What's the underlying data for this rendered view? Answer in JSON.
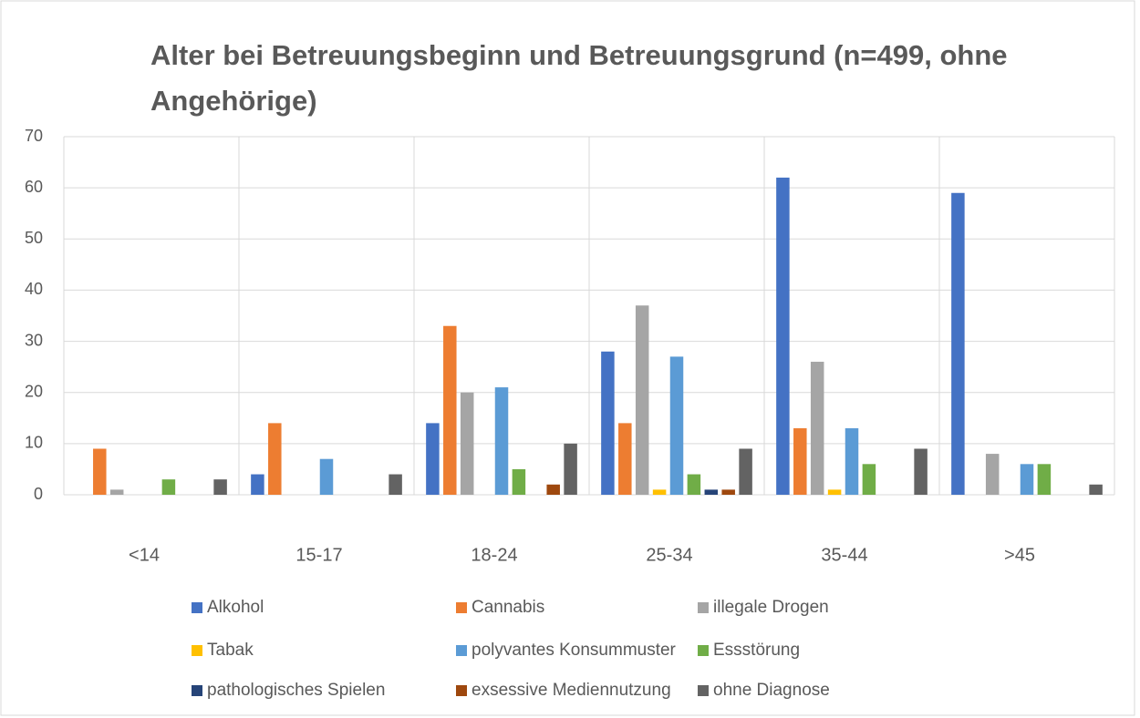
{
  "chart_data": {
    "type": "bar",
    "title": "Alter bei Betreuungsbeginn und Betreuungsgrund (n=499, ohne Angehörige)",
    "categories": [
      "<14",
      "15-17",
      "18-24",
      "25-34",
      "35-44",
      ">45"
    ],
    "series": [
      {
        "name": "Alkohol",
        "color": "#4472c4",
        "values": [
          0,
          4,
          14,
          28,
          62,
          59
        ]
      },
      {
        "name": "Cannabis",
        "color": "#ed7d31",
        "values": [
          9,
          14,
          33,
          14,
          13,
          0
        ]
      },
      {
        "name": "illegale Drogen",
        "color": "#a5a5a5",
        "values": [
          1,
          0,
          20,
          37,
          26,
          8
        ]
      },
      {
        "name": "Tabak",
        "color": "#ffc000",
        "values": [
          0,
          0,
          0,
          1,
          1,
          0
        ]
      },
      {
        "name": "polyvantes Konsummuster",
        "color": "#5b9bd5",
        "values": [
          0,
          7,
          21,
          27,
          13,
          6
        ]
      },
      {
        "name": "Essstörung",
        "color": "#70ad47",
        "values": [
          3,
          0,
          5,
          4,
          6,
          6
        ]
      },
      {
        "name": "pathologisches Spielen",
        "color": "#264478",
        "values": [
          0,
          0,
          0,
          1,
          0,
          0
        ]
      },
      {
        "name": "exsessive Mediennutzung",
        "color": "#9e480e",
        "values": [
          0,
          0,
          2,
          1,
          0,
          0
        ]
      },
      {
        "name": "ohne Diagnose",
        "color": "#636363",
        "values": [
          3,
          4,
          10,
          9,
          9,
          2
        ]
      }
    ],
    "ylim": [
      0,
      70
    ],
    "yticks": [
      0,
      10,
      20,
      30,
      40,
      50,
      60,
      70
    ],
    "grid": true,
    "legend": "bottom"
  }
}
